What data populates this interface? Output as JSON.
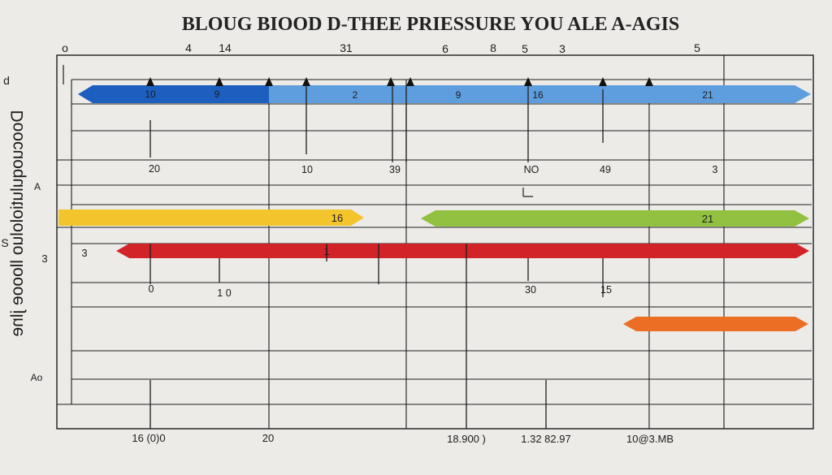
{
  "title": "BLOUG BIOOD D-THEE PRIESSURE YOU ALE A-AGIS",
  "y_axis_label": "Doocuoqulutiololuo lloooe jlne",
  "y_axis_side_labels": [
    "d",
    "S",
    "A",
    "3",
    "Ao"
  ],
  "top_tick_labels": [
    "4",
    "14",
    "31",
    "6",
    "8",
    "5",
    "3",
    "5",
    "o"
  ],
  "mid_tick_labels": [
    "20",
    "10",
    "39",
    "NO",
    "49",
    "3"
  ],
  "second_tick_labels": [
    "0",
    "1 0",
    "30",
    "15"
  ],
  "bottom_tick_labels": [
    "16 (0)0",
    "20",
    "18.900 )",
    "1.32 82.97",
    "10@3.MB"
  ],
  "colors": {
    "blue_dark": "#1d5fbf",
    "blue_light": "#5e9ede",
    "yellow": "#f3c42c",
    "green": "#92c040",
    "red": "#d22428",
    "orange": "#ec6e24"
  },
  "chart_data": {
    "type": "bar",
    "orientation": "horizontal",
    "title": "BLOUG BIOOD D-THEE PRIESSURE YOU ALE A-AGIS",
    "grid": true,
    "bars": [
      {
        "name": "blue",
        "segments": [
          {
            "color": "blue_dark",
            "labels": [
              "10",
              "9"
            ]
          },
          {
            "color": "blue_light",
            "labels": [
              "2",
              "9",
              "16",
              "21"
            ]
          }
        ]
      },
      {
        "name": "yellow",
        "segments": [
          {
            "color": "yellow",
            "labels": [
              "16"
            ]
          }
        ]
      },
      {
        "name": "green",
        "segments": [
          {
            "color": "green",
            "labels": [
              "21"
            ]
          }
        ]
      },
      {
        "name": "red",
        "segments": [
          {
            "color": "red",
            "labels": [
              "1"
            ]
          }
        ]
      },
      {
        "name": "orange",
        "segments": [
          {
            "color": "orange",
            "labels": []
          }
        ]
      }
    ]
  }
}
